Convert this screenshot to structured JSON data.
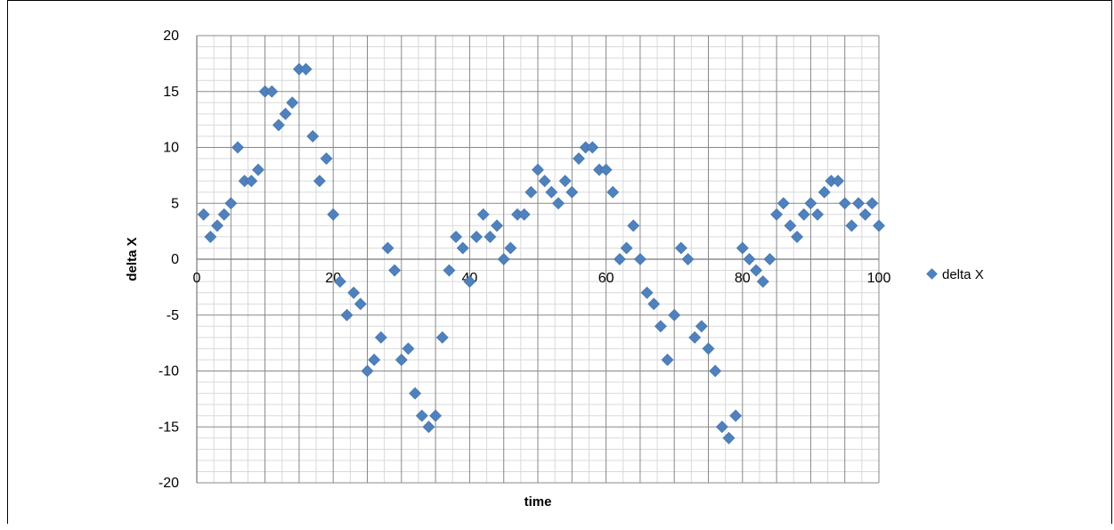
{
  "chart_data": {
    "type": "scatter",
    "title": "",
    "xlabel": "time",
    "ylabel": "delta X",
    "xlim": [
      0,
      100
    ],
    "ylim": [
      -20,
      20
    ],
    "xticks": [
      "0",
      "20",
      "40",
      "60",
      "80",
      "100"
    ],
    "yticks": [
      "20",
      "15",
      "10",
      "5",
      "0",
      "-5",
      "-10",
      "-15",
      "-20"
    ],
    "grid": true,
    "legend_position": "right",
    "marker_color": "#4F81BD",
    "series": [
      {
        "name": "delta X",
        "x": [
          1,
          2,
          3,
          4,
          5,
          6,
          7,
          8,
          9,
          10,
          11,
          12,
          13,
          14,
          15,
          16,
          17,
          18,
          19,
          20,
          21,
          22,
          23,
          24,
          25,
          26,
          27,
          28,
          29,
          30,
          31,
          32,
          33,
          34,
          35,
          36,
          37,
          38,
          39,
          40,
          41,
          42,
          43,
          44,
          45,
          46,
          47,
          48,
          49,
          50,
          51,
          52,
          53,
          54,
          55,
          56,
          57,
          58,
          59,
          60,
          61,
          62,
          63,
          64,
          65,
          66,
          67,
          68,
          69,
          70,
          71,
          72,
          73,
          74,
          75,
          76,
          77,
          78,
          79,
          80,
          81,
          82,
          83,
          84,
          85,
          86,
          87,
          88,
          89,
          90,
          91,
          92,
          93,
          94,
          95,
          96,
          97,
          98,
          99,
          100
        ],
        "y": [
          4,
          2,
          3,
          4,
          5,
          10,
          7,
          7,
          8,
          15,
          15,
          12,
          13,
          14,
          17,
          17,
          11,
          7,
          9,
          4,
          -2,
          -5,
          -3,
          -4,
          -10,
          -9,
          -7,
          1,
          -1,
          -9,
          -8,
          -12,
          -14,
          -15,
          -14,
          -7,
          -1,
          2,
          1,
          -2,
          2,
          4,
          2,
          3,
          0,
          1,
          4,
          4,
          6,
          8,
          7,
          6,
          5,
          7,
          6,
          9,
          10,
          10,
          8,
          8,
          6,
          0,
          1,
          3,
          0,
          -3,
          -4,
          -6,
          -9,
          -5,
          1,
          0,
          -7,
          -6,
          -8,
          -10,
          -15,
          -16,
          -14,
          1,
          0,
          -1,
          -2,
          0,
          4,
          5,
          3,
          2,
          4,
          5,
          4,
          6,
          7,
          7,
          5,
          3,
          5,
          4,
          5,
          3
        ]
      }
    ]
  }
}
